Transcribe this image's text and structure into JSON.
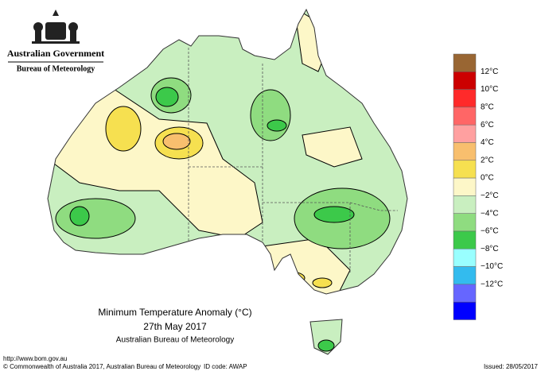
{
  "header": {
    "org": "Australian Government",
    "bureau": "Bureau of Meteorology"
  },
  "title": {
    "line1": "Minimum Temperature Anomaly (°C)",
    "line2": "27th May 2017",
    "line3": "Australian Bureau of Meteorology"
  },
  "legend": {
    "labels": [
      "12°C",
      "10°C",
      "8°C",
      "6°C",
      "4°C",
      "2°C",
      "0°C",
      "−2°C",
      "−4°C",
      "−6°C",
      "−8°C",
      "−10°C",
      "−12°C"
    ],
    "colors": [
      "#996633",
      "#cc0000",
      "#ff2a2a",
      "#ff6666",
      "#ffa0a0",
      "#f8bf6e",
      "#f6e050",
      "#fdf7c8",
      "#c9efc0",
      "#8fdc80",
      "#3cc94a",
      "#99ffff",
      "#33bbee",
      "#6666ff",
      "#0000ff"
    ]
  },
  "footer": {
    "url": "http://www.bom.gov.au",
    "copyright": "© Commonwealth of Australia 2017, Australian Bureau of Meteorology",
    "id": "ID code: AWAP",
    "issued": "Issued: 28/05/2017"
  }
}
